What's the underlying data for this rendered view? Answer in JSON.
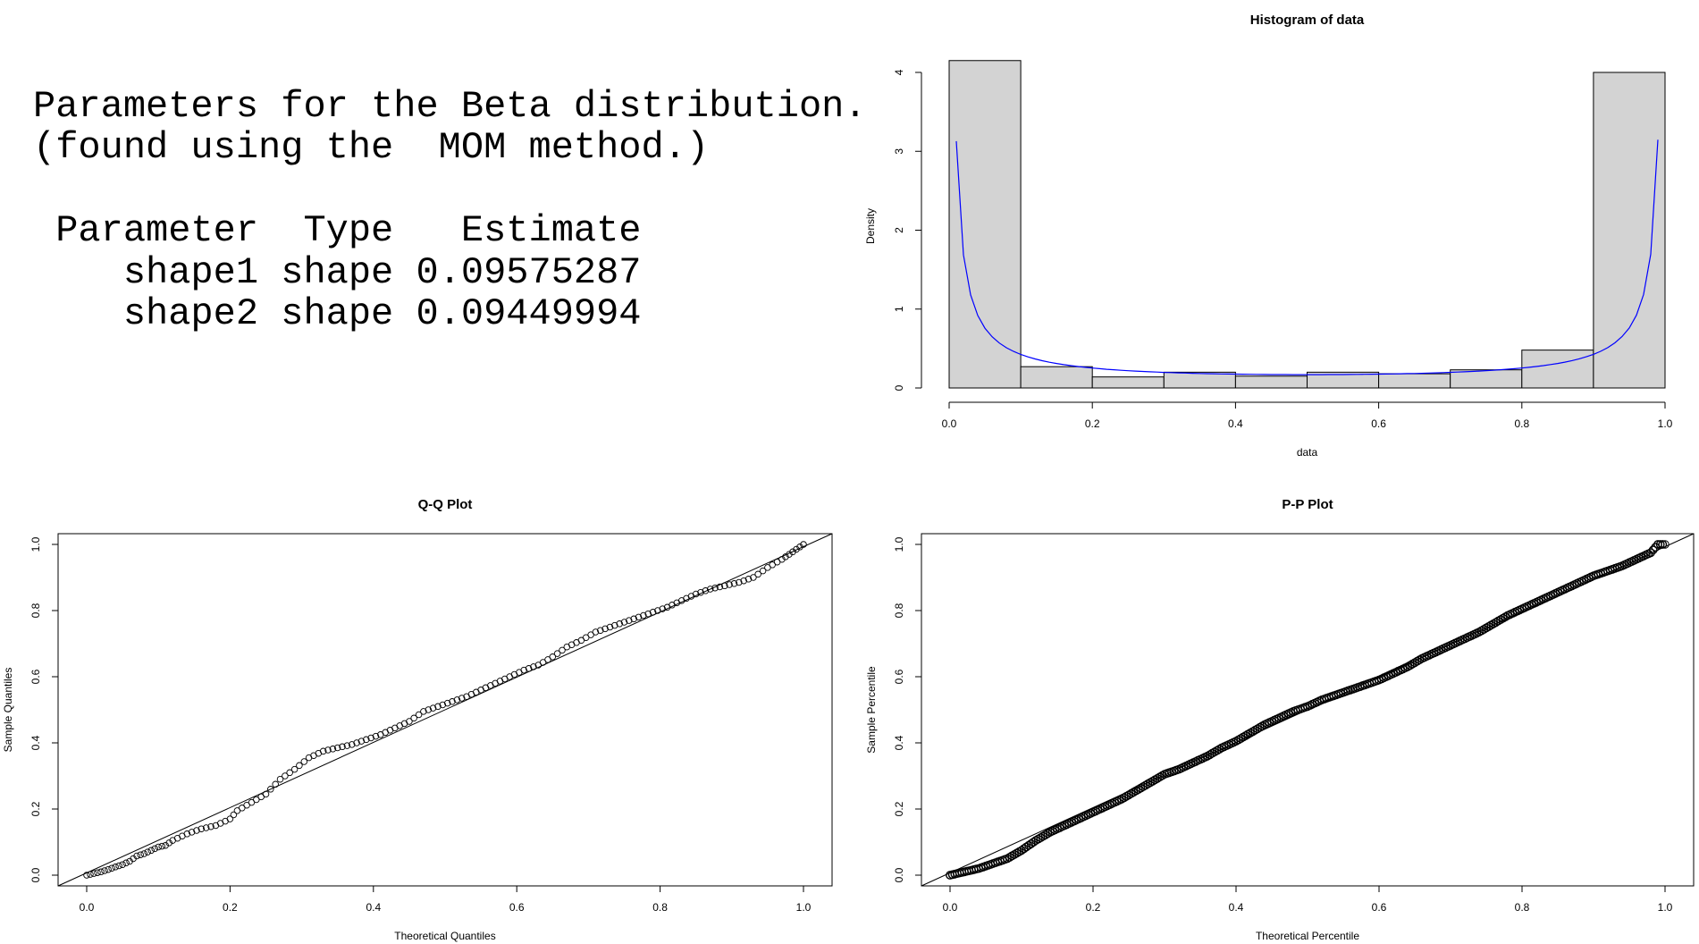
{
  "params": {
    "line1": "Parameters for the Beta distribution.",
    "line2": "(found using the  MOM method.)",
    "header": {
      "parameter": "Parameter",
      "type": "Type",
      "estimate": "Estimate"
    },
    "rows": [
      {
        "parameter": "shape1",
        "type": "shape",
        "estimate": "0.09575287"
      },
      {
        "parameter": "shape2",
        "type": "shape",
        "estimate": "0.09449994"
      }
    ]
  },
  "chart_data": [
    {
      "type": "bar",
      "title": "Histogram of data",
      "xlabel": "data",
      "ylabel": "Density",
      "bin_edges": [
        0,
        0.1,
        0.2,
        0.3,
        0.4,
        0.5,
        0.6,
        0.7,
        0.8,
        0.9,
        1.0
      ],
      "values": [
        4.15,
        0.27,
        0.14,
        0.2,
        0.15,
        0.2,
        0.18,
        0.23,
        0.48,
        4.0
      ],
      "xlim": [
        0,
        1
      ],
      "ylim": [
        0,
        4.3
      ],
      "xticks": [
        "0.0",
        "0.2",
        "0.4",
        "0.6",
        "0.8",
        "1.0"
      ],
      "yticks": [
        "0",
        "1",
        "2",
        "3",
        "4"
      ],
      "bar_color": "#d3d3d3",
      "density_curve": {
        "color": "#0000ff",
        "shape1": 0.09575287,
        "shape2": 0.09449994,
        "x_range": [
          0.01,
          0.99
        ]
      }
    },
    {
      "type": "scatter",
      "title": "Q-Q Plot",
      "xlabel": "Theoretical Quantiles",
      "ylabel": "Sample Quantiles",
      "xlim": [
        0,
        1
      ],
      "ylim": [
        0,
        1
      ],
      "xticks": [
        "0.0",
        "0.2",
        "0.4",
        "0.6",
        "0.8",
        "1.0"
      ],
      "yticks": [
        "0.0",
        "0.2",
        "0.4",
        "0.6",
        "0.8",
        "1.0"
      ],
      "marker": "open-circle",
      "reference_line": "y = x",
      "points": [
        [
          0.0,
          0.0
        ],
        [
          0.01,
          0.005
        ],
        [
          0.02,
          0.01
        ],
        [
          0.03,
          0.017
        ],
        [
          0.04,
          0.025
        ],
        [
          0.05,
          0.032
        ],
        [
          0.06,
          0.042
        ],
        [
          0.07,
          0.058
        ],
        [
          0.08,
          0.065
        ],
        [
          0.09,
          0.075
        ],
        [
          0.1,
          0.085
        ],
        [
          0.11,
          0.09
        ],
        [
          0.12,
          0.105
        ],
        [
          0.14,
          0.125
        ],
        [
          0.16,
          0.14
        ],
        [
          0.18,
          0.15
        ],
        [
          0.2,
          0.17
        ],
        [
          0.21,
          0.195
        ],
        [
          0.23,
          0.22
        ],
        [
          0.25,
          0.245
        ],
        [
          0.27,
          0.29
        ],
        [
          0.29,
          0.32
        ],
        [
          0.31,
          0.355
        ],
        [
          0.33,
          0.375
        ],
        [
          0.35,
          0.385
        ],
        [
          0.37,
          0.395
        ],
        [
          0.39,
          0.41
        ],
        [
          0.41,
          0.425
        ],
        [
          0.43,
          0.445
        ],
        [
          0.45,
          0.465
        ],
        [
          0.47,
          0.495
        ],
        [
          0.49,
          0.51
        ],
        [
          0.51,
          0.525
        ],
        [
          0.53,
          0.54
        ],
        [
          0.55,
          0.56
        ],
        [
          0.57,
          0.58
        ],
        [
          0.59,
          0.6
        ],
        [
          0.61,
          0.62
        ],
        [
          0.63,
          0.635
        ],
        [
          0.65,
          0.66
        ],
        [
          0.67,
          0.69
        ],
        [
          0.69,
          0.71
        ],
        [
          0.71,
          0.735
        ],
        [
          0.73,
          0.75
        ],
        [
          0.75,
          0.765
        ],
        [
          0.77,
          0.78
        ],
        [
          0.79,
          0.795
        ],
        [
          0.81,
          0.81
        ],
        [
          0.83,
          0.83
        ],
        [
          0.85,
          0.85
        ],
        [
          0.87,
          0.865
        ],
        [
          0.89,
          0.875
        ],
        [
          0.91,
          0.885
        ],
        [
          0.93,
          0.9
        ],
        [
          0.95,
          0.93
        ],
        [
          0.97,
          0.955
        ],
        [
          0.98,
          0.97
        ],
        [
          0.99,
          0.985
        ],
        [
          1.0,
          1.0
        ]
      ]
    },
    {
      "type": "scatter",
      "title": "P-P Plot",
      "xlabel": "Theoretical Percentile",
      "ylabel": "Sample Percentile",
      "xlim": [
        0,
        1
      ],
      "ylim": [
        0,
        1
      ],
      "xticks": [
        "0.0",
        "0.2",
        "0.4",
        "0.6",
        "0.8",
        "1.0"
      ],
      "yticks": [
        "0.0",
        "0.2",
        "0.4",
        "0.6",
        "0.8",
        "1.0"
      ],
      "marker": "open-circle-dense",
      "reference_line": "y = x",
      "points": [
        [
          0.0,
          0.0
        ],
        [
          0.02,
          0.01
        ],
        [
          0.04,
          0.02
        ],
        [
          0.06,
          0.035
        ],
        [
          0.08,
          0.05
        ],
        [
          0.1,
          0.075
        ],
        [
          0.12,
          0.105
        ],
        [
          0.14,
          0.13
        ],
        [
          0.16,
          0.15
        ],
        [
          0.18,
          0.17
        ],
        [
          0.2,
          0.19
        ],
        [
          0.22,
          0.21
        ],
        [
          0.24,
          0.23
        ],
        [
          0.26,
          0.255
        ],
        [
          0.28,
          0.28
        ],
        [
          0.3,
          0.305
        ],
        [
          0.32,
          0.32
        ],
        [
          0.34,
          0.34
        ],
        [
          0.36,
          0.36
        ],
        [
          0.38,
          0.385
        ],
        [
          0.4,
          0.405
        ],
        [
          0.42,
          0.43
        ],
        [
          0.44,
          0.455
        ],
        [
          0.46,
          0.475
        ],
        [
          0.48,
          0.495
        ],
        [
          0.5,
          0.51
        ],
        [
          0.52,
          0.53
        ],
        [
          0.54,
          0.545
        ],
        [
          0.56,
          0.56
        ],
        [
          0.58,
          0.575
        ],
        [
          0.6,
          0.59
        ],
        [
          0.62,
          0.61
        ],
        [
          0.64,
          0.63
        ],
        [
          0.66,
          0.655
        ],
        [
          0.68,
          0.675
        ],
        [
          0.7,
          0.695
        ],
        [
          0.72,
          0.715
        ],
        [
          0.74,
          0.735
        ],
        [
          0.76,
          0.76
        ],
        [
          0.78,
          0.785
        ],
        [
          0.8,
          0.805
        ],
        [
          0.82,
          0.825
        ],
        [
          0.84,
          0.845
        ],
        [
          0.86,
          0.865
        ],
        [
          0.88,
          0.885
        ],
        [
          0.9,
          0.905
        ],
        [
          0.92,
          0.92
        ],
        [
          0.94,
          0.935
        ],
        [
          0.96,
          0.955
        ],
        [
          0.98,
          0.975
        ],
        [
          0.99,
          1.0
        ],
        [
          1.0,
          1.0
        ]
      ]
    }
  ]
}
